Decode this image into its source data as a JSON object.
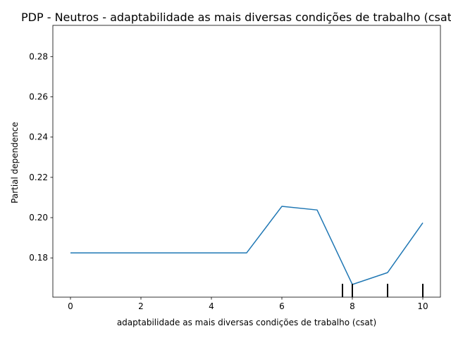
{
  "chart_data": {
    "type": "line",
    "title": "PDP - Neutros - adaptabilidade as mais diversas condições de trabalho (csat)",
    "xlabel": "adaptabilidade as mais diversas condições de trabalho (csat)",
    "ylabel": "Partial dependence",
    "xlim": [
      -0.5,
      10.5
    ],
    "ylim": [
      0.1605,
      0.2955
    ],
    "x_ticks": [
      0,
      2,
      4,
      6,
      8,
      10
    ],
    "x_tick_labels": [
      "0",
      "2",
      "4",
      "6",
      "8",
      "10"
    ],
    "y_ticks": [
      0.18,
      0.2,
      0.22,
      0.24,
      0.26,
      0.28
    ],
    "y_tick_labels": [
      "0.18",
      "0.20",
      "0.22",
      "0.24",
      "0.26",
      "0.28"
    ],
    "grid": false,
    "series": [
      {
        "color": "#1f77b4",
        "x": [
          0,
          5,
          6,
          7,
          8,
          9,
          10
        ],
        "y": [
          0.1825,
          0.1825,
          0.2056,
          0.2038,
          0.1668,
          0.1727,
          0.1974
        ]
      }
    ],
    "rug_deciles": [
      7.72,
      8,
      9,
      10
    ],
    "rug_color": "#000000"
  }
}
